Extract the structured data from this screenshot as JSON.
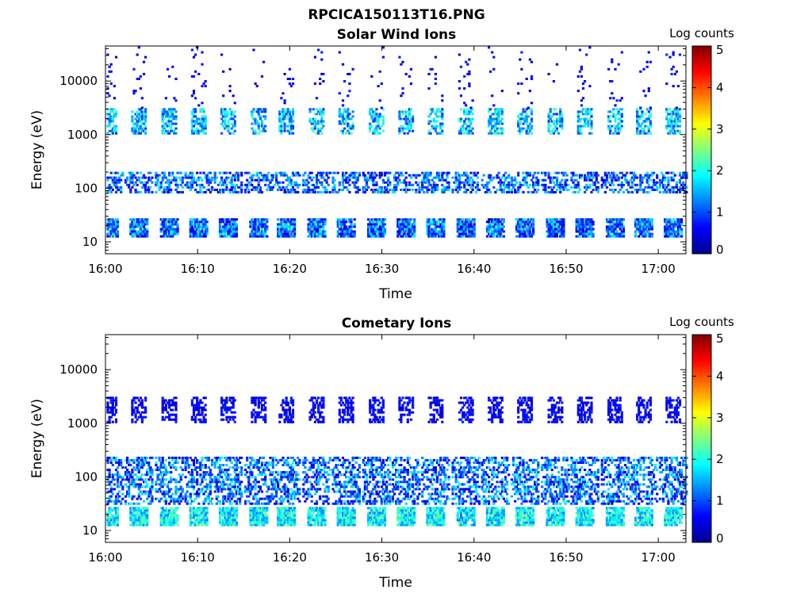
{
  "figure_title": "RPCICA150113T16.PNG",
  "colors": {
    "scale": [
      "#00008f",
      "#0000ff",
      "#0080ff",
      "#00ffff",
      "#80ff80",
      "#ffff00",
      "#ff8000",
      "#ff0000",
      "#800000"
    ]
  },
  "chart_data": [
    {
      "type": "heatmap",
      "title": "Solar Wind Ions",
      "xlabel": "Time",
      "ylabel": "Energy (eV)",
      "colorbar_label": "Log counts",
      "x_ticks": [
        "16:00",
        "16:10",
        "16:20",
        "16:30",
        "16:40",
        "16:50",
        "17:00"
      ],
      "y_ticks": [
        "10",
        "100",
        "1000",
        "10000"
      ],
      "y_tick_values": [
        10,
        100,
        1000,
        10000
      ],
      "y_scale": "log",
      "ylim": [
        6,
        45000
      ],
      "xlim_minutes": [
        0,
        63
      ],
      "colorbar_ticks": [
        "0",
        "1",
        "2",
        "3",
        "4",
        "5"
      ],
      "clim": [
        0,
        5
      ],
      "grid": false,
      "cycle_minutes": [
        0.3,
        3.5,
        6.8,
        10,
        13.2,
        16.5,
        19.5,
        22.8,
        26,
        29.3,
        32.5,
        35.7,
        39,
        42.2,
        45.4,
        48.7,
        51.9,
        55.2,
        58.3,
        61.5
      ],
      "bands": [
        {
          "energy_range_ev": [
            12,
            27
          ],
          "level_range": [
            0.3,
            1.9
          ],
          "note": "low-energy bursts each cycle"
        },
        {
          "energy_range_ev": [
            80,
            200
          ],
          "level_range": [
            0.3,
            1.8
          ],
          "note": "scattered"
        },
        {
          "energy_range_ev": [
            1000,
            3000
          ],
          "level_range": [
            0.8,
            2.3
          ],
          "note": "solar wind peak each cycle"
        },
        {
          "energy_range_ev": [
            3000,
            45000
          ],
          "level_range": [
            0.3,
            0.8
          ],
          "note": "sparse"
        }
      ]
    },
    {
      "type": "heatmap",
      "title": "Cometary Ions",
      "xlabel": "Time",
      "ylabel": "Energy (eV)",
      "colorbar_label": "Log counts",
      "x_ticks": [
        "16:00",
        "16:10",
        "16:20",
        "16:30",
        "16:40",
        "16:50",
        "17:00"
      ],
      "y_ticks": [
        "10",
        "100",
        "1000",
        "10000"
      ],
      "y_tick_values": [
        10,
        100,
        1000,
        10000
      ],
      "y_scale": "log",
      "ylim": [
        6,
        45000
      ],
      "xlim_minutes": [
        0,
        63
      ],
      "colorbar_ticks": [
        "0",
        "1",
        "2",
        "3",
        "4",
        "5"
      ],
      "clim": [
        0,
        5
      ],
      "grid": false,
      "cycle_minutes": [
        0.3,
        3.5,
        6.8,
        10,
        13.2,
        16.5,
        19.5,
        22.8,
        26,
        29.3,
        32.5,
        35.7,
        39,
        42.2,
        45.4,
        48.7,
        51.9,
        55.2,
        58.3,
        61.5
      ],
      "bands": [
        {
          "energy_range_ev": [
            12,
            27
          ],
          "level_range": [
            1.2,
            2.4
          ],
          "note": "bright low-energy bursts each cycle"
        },
        {
          "energy_range_ev": [
            30,
            250
          ],
          "level_range": [
            0.3,
            1.9
          ],
          "note": "dense broad band"
        },
        {
          "energy_range_ev": [
            1000,
            3000
          ],
          "level_range": [
            0.3,
            0.8
          ],
          "note": "weak spots each cycle"
        }
      ]
    }
  ]
}
